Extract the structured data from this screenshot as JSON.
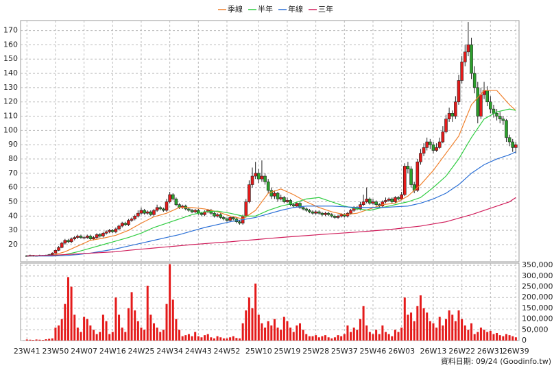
{
  "chart_data": {
    "type": "candlestick",
    "source": "資料日期: 09/24  (Goodinfo.tw)",
    "up_color": "#e41a1a",
    "down_color": "#2ca02c",
    "xlim": [
      -2,
      155
    ],
    "xticks": [
      {
        "value": 0,
        "label": "23W41"
      },
      {
        "value": 9,
        "label": "23W50"
      },
      {
        "value": 18,
        "label": "24W07"
      },
      {
        "value": 27,
        "label": "24W16"
      },
      {
        "value": 36,
        "label": "24W25"
      },
      {
        "value": 45,
        "label": "24W34"
      },
      {
        "value": 54,
        "label": "24W43"
      },
      {
        "value": 63,
        "label": "24W52"
      },
      {
        "value": 73,
        "label": "25W10"
      },
      {
        "value": 82,
        "label": "25W19"
      },
      {
        "value": 91,
        "label": "25W28"
      },
      {
        "value": 100,
        "label": "25W37"
      },
      {
        "value": 109,
        "label": "25W46"
      },
      {
        "value": 118,
        "label": "26W03"
      },
      {
        "value": 128,
        "label": "26W13"
      },
      {
        "value": 137,
        "label": "26W22"
      },
      {
        "value": 146,
        "label": "26W31"
      },
      {
        "value": 154,
        "label": "26W39"
      }
    ],
    "ylim": [
      8,
      177
    ],
    "yticks": [
      20,
      30,
      40,
      50,
      60,
      70,
      80,
      90,
      100,
      110,
      120,
      130,
      140,
      150,
      160,
      170
    ],
    "grid": true,
    "ohlc": [
      [
        12.2,
        12.7,
        11.7,
        12
      ],
      [
        12,
        13,
        11.8,
        12.5
      ],
      [
        12.5,
        12.8,
        11.6,
        12
      ],
      [
        12,
        12.6,
        11.8,
        12.3
      ],
      [
        12.3,
        12.9,
        12,
        12.5
      ],
      [
        12.5,
        12.7,
        11.9,
        12.2
      ],
      [
        12.2,
        13,
        12,
        12.6
      ],
      [
        12.6,
        13.5,
        12.4,
        13
      ],
      [
        13,
        14.6,
        12.8,
        14
      ],
      [
        14,
        16.8,
        13.7,
        16
      ],
      [
        16,
        19,
        15.5,
        18
      ],
      [
        18,
        22,
        17.5,
        21
      ],
      [
        21,
        24,
        20,
        23
      ],
      [
        23,
        24,
        21,
        22
      ],
      [
        22,
        25,
        21,
        24
      ],
      [
        24,
        26,
        23,
        25
      ],
      [
        25,
        27,
        24,
        26
      ],
      [
        26,
        27,
        24,
        25
      ],
      [
        25,
        26,
        24,
        25
      ],
      [
        25,
        27,
        24,
        26
      ],
      [
        26,
        27,
        23,
        24
      ],
      [
        24,
        26,
        23,
        25
      ],
      [
        25,
        28,
        24,
        27
      ],
      [
        27,
        28,
        25,
        26
      ],
      [
        26,
        29,
        25,
        28
      ],
      [
        28,
        30,
        27,
        29
      ],
      [
        29,
        31,
        28,
        30
      ],
      [
        30,
        31,
        28,
        29
      ],
      [
        29,
        32,
        28,
        31
      ],
      [
        31,
        34,
        30,
        33
      ],
      [
        33,
        36,
        32,
        35
      ],
      [
        35,
        36,
        33,
        34
      ],
      [
        34,
        38,
        33,
        37
      ],
      [
        37,
        39,
        36,
        38
      ],
      [
        38,
        41,
        37,
        40
      ],
      [
        40,
        44,
        39,
        42
      ],
      [
        42,
        46,
        41,
        44
      ],
      [
        44,
        45,
        41,
        42
      ],
      [
        42,
        44,
        41,
        43
      ],
      [
        43,
        44,
        40,
        41
      ],
      [
        41,
        45,
        40,
        44
      ],
      [
        44,
        48,
        43,
        46
      ],
      [
        46,
        47,
        44,
        45
      ],
      [
        45,
        46,
        43,
        44
      ],
      [
        44,
        52,
        43,
        50
      ],
      [
        50,
        57,
        49,
        55
      ],
      [
        55,
        56,
        51,
        52
      ],
      [
        52,
        53,
        47,
        48
      ],
      [
        48,
        49,
        45,
        46
      ],
      [
        46,
        48,
        45,
        47
      ],
      [
        47,
        48,
        44,
        45
      ],
      [
        45,
        46,
        43,
        44
      ],
      [
        44,
        45,
        42,
        43
      ],
      [
        43,
        45,
        42,
        44
      ],
      [
        44,
        45,
        41,
        42
      ],
      [
        42,
        43,
        40,
        41
      ],
      [
        41,
        44,
        40,
        43
      ],
      [
        43,
        45,
        42,
        44
      ],
      [
        44,
        45,
        41,
        42
      ],
      [
        42,
        43,
        39,
        40
      ],
      [
        40,
        42,
        39,
        41
      ],
      [
        41,
        42,
        38,
        39
      ],
      [
        39,
        40,
        37,
        38
      ],
      [
        38,
        39,
        36,
        37
      ],
      [
        37,
        40,
        36,
        39
      ],
      [
        39,
        40,
        37,
        38
      ],
      [
        38,
        39,
        35,
        36
      ],
      [
        36,
        37,
        34,
        35
      ],
      [
        35,
        41,
        34,
        40
      ],
      [
        40,
        52,
        39,
        50
      ],
      [
        50,
        65,
        49,
        62
      ],
      [
        62,
        74,
        60,
        68
      ],
      [
        68,
        78,
        66,
        70
      ],
      [
        70,
        73,
        63,
        66
      ],
      [
        66,
        79,
        64,
        68
      ],
      [
        68,
        70,
        62,
        64
      ],
      [
        64,
        66,
        56,
        58
      ],
      [
        58,
        60,
        52,
        54
      ],
      [
        54,
        58,
        52,
        56
      ],
      [
        56,
        57,
        50,
        52
      ],
      [
        52,
        55,
        51,
        53
      ],
      [
        53,
        54,
        49,
        50
      ],
      [
        50,
        53,
        49,
        51
      ],
      [
        51,
        52,
        47,
        48
      ],
      [
        48,
        49,
        46,
        47
      ],
      [
        47,
        50,
        46,
        49
      ],
      [
        49,
        50,
        45,
        46
      ],
      [
        46,
        47,
        44,
        45
      ],
      [
        45,
        46,
        43,
        44
      ],
      [
        44,
        45,
        42,
        43
      ],
      [
        43,
        44,
        41,
        42
      ],
      [
        42,
        44,
        41,
        43
      ],
      [
        43,
        44,
        41,
        42
      ],
      [
        42,
        43,
        40,
        41
      ],
      [
        41,
        43,
        40,
        42
      ],
      [
        42,
        43,
        40,
        41
      ],
      [
        41,
        42,
        39,
        40
      ],
      [
        40,
        41,
        38,
        39
      ],
      [
        39,
        41,
        38,
        40
      ],
      [
        40,
        42,
        39,
        41
      ],
      [
        41,
        42,
        39,
        40
      ],
      [
        40,
        43,
        39,
        42
      ],
      [
        42,
        45,
        41,
        44
      ],
      [
        44,
        47,
        43,
        46
      ],
      [
        46,
        47,
        44,
        45
      ],
      [
        45,
        50,
        44,
        48
      ],
      [
        48,
        55,
        47,
        50
      ],
      [
        50,
        60,
        49,
        52
      ],
      [
        52,
        53,
        48,
        49
      ],
      [
        49,
        52,
        48,
        50
      ],
      [
        50,
        51,
        47,
        48
      ],
      [
        48,
        49,
        46,
        47
      ],
      [
        47,
        51,
        46,
        50
      ],
      [
        50,
        53,
        49,
        51
      ],
      [
        51,
        53,
        50,
        52
      ],
      [
        52,
        53,
        49,
        50
      ],
      [
        50,
        54,
        49,
        53
      ],
      [
        53,
        54,
        51,
        52
      ],
      [
        52,
        57,
        51,
        55
      ],
      [
        55,
        77,
        54,
        75
      ],
      [
        75,
        78,
        70,
        73
      ],
      [
        73,
        75,
        60,
        62
      ],
      [
        62,
        64,
        56,
        58
      ],
      [
        58,
        80,
        57,
        78
      ],
      [
        78,
        87,
        76,
        84
      ],
      [
        84,
        91,
        82,
        88
      ],
      [
        88,
        95,
        86,
        92
      ],
      [
        92,
        94,
        87,
        90
      ],
      [
        90,
        92,
        84,
        86
      ],
      [
        86,
        91,
        85,
        88
      ],
      [
        88,
        95,
        87,
        92
      ],
      [
        92,
        103,
        91,
        99
      ],
      [
        99,
        111,
        98,
        108
      ],
      [
        108,
        116,
        106,
        112
      ],
      [
        112,
        114,
        106,
        110
      ],
      [
        110,
        124,
        108,
        120
      ],
      [
        120,
        139,
        118,
        135
      ],
      [
        135,
        152,
        133,
        148
      ],
      [
        148,
        160,
        145,
        155
      ],
      [
        155,
        176,
        152,
        160
      ],
      [
        160,
        165,
        136,
        140
      ],
      [
        140,
        145,
        126,
        130
      ],
      [
        130,
        134,
        105,
        110
      ],
      [
        110,
        130,
        108,
        125
      ],
      [
        125,
        134,
        122,
        128
      ],
      [
        128,
        131,
        117,
        120
      ],
      [
        120,
        124,
        112,
        115
      ],
      [
        115,
        118,
        109,
        112
      ],
      [
        112,
        115,
        107,
        110
      ],
      [
        110,
        113,
        105,
        108
      ],
      [
        108,
        110,
        104,
        107
      ],
      [
        107,
        108,
        92,
        95
      ],
      [
        95,
        97,
        89,
        92
      ],
      [
        92,
        94,
        85,
        88
      ],
      [
        88,
        92,
        84,
        90
      ]
    ],
    "series": [
      {
        "name": "季線",
        "color": "#f07f2a",
        "x": [
          0,
          4,
          8,
          12,
          16,
          20,
          24,
          28,
          32,
          36,
          40,
          44,
          48,
          52,
          56,
          60,
          64,
          68,
          72,
          76,
          80,
          84,
          88,
          92,
          96,
          100,
          104,
          108,
          112,
          116,
          120,
          124,
          128,
          132,
          136,
          140,
          144,
          148,
          152,
          154
        ],
        "values": [
          12,
          12.2,
          12.5,
          15,
          19,
          23,
          24.5,
          26.5,
          30,
          35,
          39.5,
          42,
          46,
          46,
          45,
          43,
          40,
          38,
          44,
          56,
          59,
          55,
          50,
          46,
          43,
          41,
          42,
          45,
          48,
          49,
          54,
          62,
          72,
          84,
          96,
          118,
          128,
          128,
          118,
          114
        ]
      },
      {
        "name": "半年",
        "color": "#2ecc40",
        "x": [
          0,
          4,
          8,
          12,
          16,
          20,
          24,
          28,
          32,
          36,
          40,
          44,
          48,
          52,
          56,
          60,
          64,
          68,
          72,
          76,
          80,
          84,
          88,
          92,
          96,
          100,
          104,
          108,
          112,
          116,
          120,
          124,
          128,
          132,
          136,
          140,
          144,
          148,
          152,
          154
        ],
        "values": [
          12,
          12.1,
          12.3,
          13,
          15,
          17.5,
          20,
          22.5,
          25,
          28,
          32,
          35,
          38,
          41,
          43,
          43.5,
          42,
          40,
          40,
          44,
          47,
          49,
          52,
          53,
          50,
          47,
          45,
          44,
          46,
          48,
          50,
          53,
          60,
          68,
          80,
          95,
          108,
          113,
          115,
          114
        ]
      },
      {
        "name": "年線",
        "color": "#2a6fd6",
        "x": [
          0,
          4,
          8,
          12,
          16,
          20,
          24,
          28,
          32,
          36,
          40,
          44,
          48,
          52,
          56,
          60,
          64,
          68,
          72,
          76,
          80,
          84,
          88,
          92,
          96,
          100,
          104,
          108,
          112,
          116,
          120,
          124,
          128,
          132,
          136,
          140,
          144,
          148,
          152,
          154
        ],
        "values": [
          12,
          12,
          12,
          12.3,
          13,
          14,
          15.5,
          17,
          19,
          21,
          23,
          25,
          27,
          29.5,
          32,
          34,
          36,
          37.5,
          39,
          41.5,
          44,
          46,
          47,
          47,
          47,
          46.5,
          46,
          46,
          46,
          46.5,
          47,
          49,
          52,
          56,
          62,
          70,
          76,
          80,
          83,
          85
        ]
      },
      {
        "name": "三年",
        "color": "#d01c5a",
        "x": [
          0,
          4,
          8,
          12,
          16,
          20,
          24,
          28,
          32,
          36,
          40,
          44,
          48,
          52,
          56,
          60,
          64,
          68,
          72,
          76,
          80,
          84,
          88,
          92,
          96,
          100,
          104,
          108,
          112,
          116,
          120,
          124,
          128,
          132,
          136,
          140,
          144,
          148,
          152,
          154
        ],
        "values": [
          12,
          12.3,
          12.6,
          13,
          13.5,
          14,
          14.5,
          15,
          16,
          16.8,
          17.6,
          18.4,
          19.2,
          20,
          20.7,
          21.4,
          22,
          22.8,
          23.5,
          24.3,
          25,
          25.7,
          26.3,
          27,
          27.6,
          28.2,
          28.8,
          29.5,
          30.2,
          31,
          32,
          33,
          34.5,
          36,
          38.5,
          41,
          44,
          47,
          50,
          53
        ]
      }
    ],
    "volume": {
      "color": "#e41a1a",
      "ylim": [
        0,
        360000
      ],
      "yticks": [
        0,
        {
          "value": 50000,
          "label": "50,000"
        },
        {
          "value": 100000,
          "label": "100,000"
        },
        {
          "value": 150000,
          "label": "150,000"
        },
        {
          "value": 200000,
          "label": "200,000"
        },
        {
          "value": 250000,
          "label": "250,000"
        },
        {
          "value": 300000,
          "label": "300,000"
        },
        {
          "value": 350000,
          "label": "350,000"
        }
      ],
      "values": [
        5000,
        4000,
        3000,
        5000,
        4000,
        3000,
        6000,
        8000,
        10000,
        60000,
        70000,
        100000,
        170000,
        295000,
        250000,
        120000,
        60000,
        40000,
        110000,
        100000,
        70000,
        50000,
        30000,
        40000,
        120000,
        90000,
        30000,
        40000,
        200000,
        120000,
        60000,
        40000,
        150000,
        225000,
        140000,
        90000,
        60000,
        50000,
        255000,
        120000,
        80000,
        60000,
        40000,
        50000,
        170000,
        355000,
        190000,
        100000,
        50000,
        20000,
        25000,
        30000,
        20000,
        40000,
        20000,
        15000,
        25000,
        30000,
        15000,
        10000,
        20000,
        15000,
        10000,
        10000,
        15000,
        20000,
        12000,
        10000,
        80000,
        140000,
        200000,
        150000,
        265000,
        120000,
        80000,
        60000,
        90000,
        70000,
        100000,
        60000,
        50000,
        110000,
        90000,
        60000,
        40000,
        70000,
        80000,
        50000,
        30000,
        20000,
        20000,
        25000,
        15000,
        20000,
        25000,
        15000,
        10000,
        15000,
        25000,
        20000,
        30000,
        70000,
        40000,
        60000,
        50000,
        100000,
        160000,
        70000,
        40000,
        30000,
        50000,
        30000,
        70000,
        40000,
        30000,
        20000,
        50000,
        40000,
        60000,
        200000,
        120000,
        130000,
        90000,
        160000,
        210000,
        150000,
        130000,
        90000,
        80000,
        60000,
        110000,
        70000,
        100000,
        140000,
        120000,
        90000,
        140000,
        100000,
        70000,
        50000,
        80000,
        30000,
        40000,
        60000,
        50000,
        40000,
        45000,
        30000,
        35000,
        25000,
        20000,
        30000,
        25000,
        20000,
        15000
      ]
    }
  }
}
